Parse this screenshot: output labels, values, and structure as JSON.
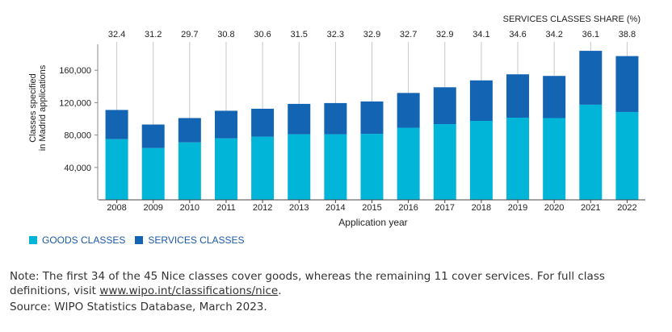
{
  "chart_data": {
    "type": "bar",
    "stacked": true,
    "categories": [
      "2008",
      "2009",
      "2010",
      "2011",
      "2012",
      "2013",
      "2014",
      "2015",
      "2016",
      "2017",
      "2018",
      "2019",
      "2020",
      "2021",
      "2022"
    ],
    "series": [
      {
        "name": "GOODS CLASSES",
        "color": "#00b5d8",
        "values": [
          75000,
          64000,
          71000,
          76000,
          78000,
          81000,
          81000,
          81500,
          89000,
          93500,
          97500,
          101500,
          101000,
          117500,
          108500
        ]
      },
      {
        "name": "SERVICES CLASSES",
        "color": "#1464b4",
        "values": [
          36000,
          29000,
          30000,
          34000,
          34500,
          37500,
          38500,
          40000,
          43000,
          45500,
          50000,
          53500,
          52000,
          66500,
          69000
        ]
      }
    ],
    "share_title": "SERVICES CLASSES SHARE (%)",
    "share_labels": [
      "32.4",
      "31.2",
      "29.7",
      "30.8",
      "30.6",
      "31.5",
      "32.3",
      "32.9",
      "32.7",
      "32.9",
      "34.1",
      "34.6",
      "34.2",
      "36.1",
      "38.8"
    ],
    "ylabel_line1": "Classes specified",
    "ylabel_line2": "in Madrid applications",
    "xlabel": "Application year",
    "yticks": [
      40000,
      80000,
      120000,
      160000
    ],
    "ytick_labels": [
      "40,000",
      "80,000",
      "120,000",
      "160,000"
    ],
    "ylim": [
      0,
      200000
    ],
    "grid": false,
    "legend_position": "bottom-left"
  },
  "legend": {
    "goods_label": "GOODS CLASSES",
    "services_label": "SERVICES CLASSES",
    "goods_color": "#00b5d8",
    "services_color": "#1464b4"
  },
  "note": {
    "text_before": "Note: The first 34 of the 45 Nice classes cover goods, whereas the remaining 11 cover services. For full class definitions, visit ",
    "link": "www.wipo.int/classifications/nice",
    "text_after": "."
  },
  "source": "Source: WIPO Statistics Database, March 2023."
}
